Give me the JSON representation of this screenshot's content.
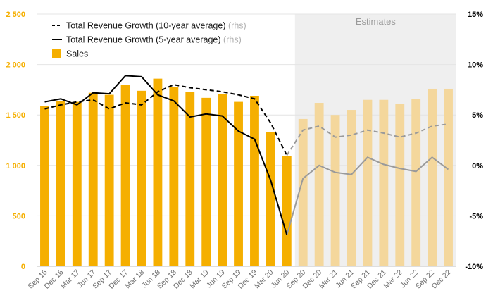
{
  "chart_data": {
    "type": "bar",
    "categories": [
      "Sep 16",
      "Dec 16",
      "Mar 17",
      "Jun 17",
      "Sep 17",
      "Dec 17",
      "Mar 18",
      "Jun 18",
      "Sep 18",
      "Dec 18",
      "Mar 19",
      "Jun 19",
      "Sep 19",
      "Dec 19",
      "Mar 20",
      "Jun 20",
      "Sep 20",
      "Dec 20",
      "Mar 21",
      "Jun 21",
      "Sep 21",
      "Dec 21",
      "Mar 22",
      "Jun 22",
      "Sep 22",
      "Dec 22"
    ],
    "estimates_start_index": 16,
    "estimates_label": "Estimates",
    "series": [
      {
        "name": "Sales",
        "kind": "bar",
        "axis": "left",
        "values": [
          1590,
          1640,
          1630,
          1720,
          1700,
          1800,
          1740,
          1860,
          1780,
          1730,
          1670,
          1710,
          1630,
          1690,
          1330,
          1090,
          1460,
          1620,
          1500,
          1550,
          1650,
          1650,
          1610,
          1660,
          1760,
          1760
        ],
        "color": "#F5AF00",
        "estimate_color": "#F4D79C"
      },
      {
        "name": "Total Revenue Growth (10-year average)",
        "axis_note": "(rhs)",
        "kind": "line",
        "style": "dashed",
        "axis": "right",
        "values": [
          5.6,
          6.0,
          6.3,
          6.5,
          5.6,
          6.2,
          6.0,
          7.3,
          8.0,
          7.7,
          7.5,
          7.3,
          7.0,
          6.6,
          4.2,
          1.0,
          3.5,
          3.9,
          2.8,
          3.0,
          3.5,
          3.2,
          2.8,
          3.2,
          3.9,
          4.1
        ],
        "color": "#000000",
        "estimate_color": "#9A9A9A"
      },
      {
        "name": "Total Revenue Growth (5-year average)",
        "axis_note": "(rhs)",
        "kind": "line",
        "style": "solid",
        "axis": "right",
        "values": [
          6.3,
          6.6,
          6.0,
          7.2,
          7.1,
          8.9,
          8.8,
          7.0,
          6.4,
          4.8,
          5.1,
          4.9,
          3.4,
          2.6,
          -1.5,
          -6.9,
          -1.3,
          0.0,
          -0.7,
          -0.9,
          0.8,
          0.1,
          -0.3,
          -0.6,
          0.8,
          -0.4
        ],
        "color": "#000000",
        "estimate_color": "#9A9A9A"
      }
    ],
    "y_left": {
      "ylim": [
        0,
        2500
      ],
      "ticks": [
        0,
        500,
        1000,
        1500,
        2000,
        2500
      ],
      "tick_labels": [
        "0",
        "500",
        "1 000",
        "1 500",
        "2 000",
        "2 500"
      ],
      "color": "#F5AF00"
    },
    "y_right": {
      "ylim": [
        -10,
        15
      ],
      "ticks": [
        -10,
        -5,
        0,
        5,
        10,
        15
      ],
      "tick_labels": [
        "-10%",
        "-5%",
        "0%",
        "5%",
        "10%",
        "15%"
      ]
    },
    "legend": {
      "position": "top-left"
    },
    "grid": true
  }
}
